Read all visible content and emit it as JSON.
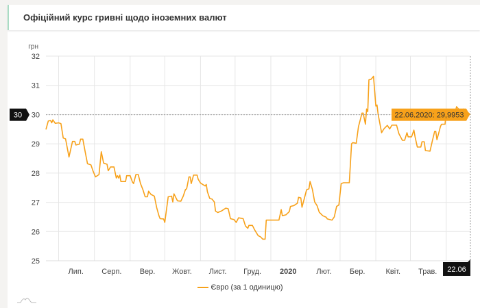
{
  "header": {
    "title": "Офіційний курс гривні щодо іноземних валют"
  },
  "colors": {
    "series": "#f7a11a",
    "tooltip_bg": "#f7a11a",
    "crosshair_label_bg": "#111111",
    "title_accent": "#a9dcc4"
  },
  "chart_data": {
    "type": "line",
    "ylabel": "грн",
    "ylim": [
      25,
      32
    ],
    "yticks": [
      "25",
      "26",
      "27",
      "28",
      "29",
      "30",
      "31",
      "32"
    ],
    "xlim": [
      "2019-06-20",
      "2020-06-22"
    ],
    "grid": true,
    "xticks": [
      {
        "date": "2019-07-01",
        "label": "Лип."
      },
      {
        "date": "2019-08-01",
        "label": "Серп."
      },
      {
        "date": "2019-09-01",
        "label": "Вер."
      },
      {
        "date": "2019-10-01",
        "label": "Жовт."
      },
      {
        "date": "2019-11-01",
        "label": "Лист."
      },
      {
        "date": "2019-12-01",
        "label": "Груд."
      },
      {
        "date": "2020-01-01",
        "label": "2020",
        "bold": true
      },
      {
        "date": "2020-02-01",
        "label": "Лют."
      },
      {
        "date": "2020-03-01",
        "label": "Бер."
      },
      {
        "date": "2020-04-01",
        "label": "Квіт."
      },
      {
        "date": "2020-05-01",
        "label": "Трав."
      },
      {
        "date": "2020-06-01",
        "label": ""
      }
    ],
    "legend_placement": "bottom-center",
    "series": [
      {
        "name": "Євро (за 1 одиницю)",
        "points": [
          [
            "2019-06-20",
            29.49
          ],
          [
            "2019-06-22",
            29.78
          ],
          [
            "2019-06-24",
            29.8
          ],
          [
            "2019-06-25",
            29.72
          ],
          [
            "2019-06-26",
            29.82
          ],
          [
            "2019-06-28",
            29.7
          ],
          [
            "2019-07-01",
            29.72
          ],
          [
            "2019-07-03",
            29.69
          ],
          [
            "2019-07-05",
            29.2
          ],
          [
            "2019-07-07",
            29.17
          ],
          [
            "2019-07-10",
            28.55
          ],
          [
            "2019-07-13",
            29.08
          ],
          [
            "2019-07-15",
            29.08
          ],
          [
            "2019-07-16",
            28.96
          ],
          [
            "2019-07-19",
            28.99
          ],
          [
            "2019-07-20",
            29.16
          ],
          [
            "2019-07-22",
            29.16
          ],
          [
            "2019-07-24",
            28.73
          ],
          [
            "2019-07-26",
            28.32
          ],
          [
            "2019-07-29",
            28.28
          ],
          [
            "2019-07-31",
            28.05
          ],
          [
            "2019-08-02",
            27.87
          ],
          [
            "2019-08-05",
            27.95
          ],
          [
            "2019-08-07",
            28.73
          ],
          [
            "2019-08-09",
            28.34
          ],
          [
            "2019-08-12",
            28.3
          ],
          [
            "2019-08-13",
            28.08
          ],
          [
            "2019-08-15",
            28.21
          ],
          [
            "2019-08-18",
            28.21
          ],
          [
            "2019-08-20",
            27.83
          ],
          [
            "2019-08-21",
            27.91
          ],
          [
            "2019-08-22",
            27.83
          ],
          [
            "2019-08-23",
            27.93
          ],
          [
            "2019-08-24",
            27.71
          ],
          [
            "2019-08-28",
            27.71
          ],
          [
            "2019-08-29",
            27.91
          ],
          [
            "2019-09-01",
            27.91
          ],
          [
            "2019-09-03",
            27.69
          ],
          [
            "2019-09-04",
            27.64
          ],
          [
            "2019-09-06",
            27.95
          ],
          [
            "2019-09-08",
            27.95
          ],
          [
            "2019-09-10",
            27.64
          ],
          [
            "2019-09-12",
            27.44
          ],
          [
            "2019-09-14",
            27.19
          ],
          [
            "2019-09-16",
            27.19
          ],
          [
            "2019-09-17",
            27.38
          ],
          [
            "2019-09-19",
            27.27
          ],
          [
            "2019-09-22",
            27.21
          ],
          [
            "2019-09-24",
            26.82
          ],
          [
            "2019-09-26",
            26.54
          ],
          [
            "2019-09-27",
            26.44
          ],
          [
            "2019-09-30",
            26.43
          ],
          [
            "2019-10-01",
            26.31
          ],
          [
            "2019-10-03",
            26.89
          ],
          [
            "2019-10-04",
            27.19
          ],
          [
            "2019-10-07",
            27.21
          ],
          [
            "2019-10-08",
            27.01
          ],
          [
            "2019-10-09",
            27.29
          ],
          [
            "2019-10-12",
            27.05
          ],
          [
            "2019-10-15",
            27.04
          ],
          [
            "2019-10-17",
            27.21
          ],
          [
            "2019-10-19",
            27.44
          ],
          [
            "2019-10-20",
            27.46
          ],
          [
            "2019-10-22",
            27.87
          ],
          [
            "2019-10-23",
            27.87
          ],
          [
            "2019-10-24",
            27.64
          ],
          [
            "2019-10-26",
            27.93
          ],
          [
            "2019-10-29",
            27.93
          ],
          [
            "2019-10-30",
            27.79
          ],
          [
            "2019-11-01",
            27.66
          ],
          [
            "2019-11-05",
            27.56
          ],
          [
            "2019-11-06",
            27.61
          ],
          [
            "2019-11-07",
            27.36
          ],
          [
            "2019-11-09",
            27.13
          ],
          [
            "2019-11-11",
            27.11
          ],
          [
            "2019-11-13",
            27.01
          ],
          [
            "2019-11-14",
            26.7
          ],
          [
            "2019-11-16",
            26.65
          ],
          [
            "2019-11-19",
            26.7
          ],
          [
            "2019-11-23",
            26.8
          ],
          [
            "2019-11-25",
            26.78
          ],
          [
            "2019-11-27",
            26.44
          ],
          [
            "2019-11-30",
            26.41
          ],
          [
            "2019-12-02",
            26.31
          ],
          [
            "2019-12-04",
            26.47
          ],
          [
            "2019-12-08",
            26.44
          ],
          [
            "2019-12-10",
            26.19
          ],
          [
            "2019-12-12",
            26.11
          ],
          [
            "2019-12-13",
            26.21
          ],
          [
            "2019-12-16",
            26.21
          ],
          [
            "2019-12-18",
            26.05
          ],
          [
            "2019-12-21",
            25.86
          ],
          [
            "2019-12-23",
            25.82
          ],
          [
            "2019-12-25",
            25.74
          ],
          [
            "2019-12-27",
            25.74
          ],
          [
            "2019-12-28",
            26.39
          ],
          [
            "2020-01-08",
            26.39
          ],
          [
            "2020-01-10",
            26.75
          ],
          [
            "2020-01-11",
            26.54
          ],
          [
            "2020-01-14",
            26.57
          ],
          [
            "2020-01-17",
            26.68
          ],
          [
            "2020-01-18",
            26.86
          ],
          [
            "2020-01-21",
            26.89
          ],
          [
            "2020-01-24",
            26.97
          ],
          [
            "2020-01-25",
            27.17
          ],
          [
            "2020-01-27",
            27.15
          ],
          [
            "2020-01-28",
            26.83
          ],
          [
            "2020-01-30",
            27.13
          ],
          [
            "2020-02-01",
            27.43
          ],
          [
            "2020-02-03",
            27.46
          ],
          [
            "2020-02-04",
            27.71
          ],
          [
            "2020-02-06",
            27.44
          ],
          [
            "2020-02-08",
            27.01
          ],
          [
            "2020-02-10",
            26.89
          ],
          [
            "2020-02-12",
            26.66
          ],
          [
            "2020-02-15",
            26.54
          ],
          [
            "2020-02-18",
            26.49
          ],
          [
            "2020-02-19",
            26.43
          ],
          [
            "2020-02-23",
            26.39
          ],
          [
            "2020-02-25",
            26.5
          ],
          [
            "2020-02-27",
            26.86
          ],
          [
            "2020-02-29",
            26.91
          ],
          [
            "2020-03-02",
            27.64
          ],
          [
            "2020-03-04",
            27.67
          ],
          [
            "2020-03-09",
            27.67
          ],
          [
            "2020-03-11",
            29.0
          ],
          [
            "2020-03-12",
            29.04
          ],
          [
            "2020-03-15",
            29.02
          ],
          [
            "2020-03-17",
            29.59
          ],
          [
            "2020-03-18",
            29.74
          ],
          [
            "2020-03-20",
            30.05
          ],
          [
            "2020-03-21",
            30.05
          ],
          [
            "2020-03-23",
            29.67
          ],
          [
            "2020-03-24",
            30.19
          ],
          [
            "2020-03-25",
            30.1
          ],
          [
            "2020-03-26",
            31.19
          ],
          [
            "2020-03-28",
            31.21
          ],
          [
            "2020-03-30",
            31.31
          ],
          [
            "2020-04-01",
            30.29
          ],
          [
            "2020-04-02",
            30.33
          ],
          [
            "2020-04-03",
            30.02
          ],
          [
            "2020-04-06",
            29.38
          ],
          [
            "2020-04-08",
            29.51
          ],
          [
            "2020-04-09",
            29.55
          ],
          [
            "2020-04-11",
            29.63
          ],
          [
            "2020-04-13",
            29.51
          ],
          [
            "2020-04-15",
            29.64
          ],
          [
            "2020-04-19",
            29.64
          ],
          [
            "2020-04-21",
            29.35
          ],
          [
            "2020-04-24",
            29.12
          ],
          [
            "2020-04-26",
            29.12
          ],
          [
            "2020-04-28",
            29.38
          ],
          [
            "2020-04-29",
            29.24
          ],
          [
            "2020-05-02",
            29.24
          ],
          [
            "2020-05-04",
            29.47
          ],
          [
            "2020-05-05",
            29.24
          ],
          [
            "2020-05-07",
            28.89
          ],
          [
            "2020-05-10",
            28.89
          ],
          [
            "2020-05-11",
            29.07
          ],
          [
            "2020-05-13",
            29.07
          ],
          [
            "2020-05-14",
            28.77
          ],
          [
            "2020-05-18",
            28.75
          ],
          [
            "2020-05-20",
            29.1
          ],
          [
            "2020-05-22",
            29.43
          ],
          [
            "2020-05-23",
            29.43
          ],
          [
            "2020-05-24",
            29.14
          ],
          [
            "2020-05-27",
            29.59
          ],
          [
            "2020-05-28",
            29.67
          ],
          [
            "2020-05-31",
            29.67
          ],
          [
            "2020-06-01",
            30.06
          ],
          [
            "2020-06-04",
            30.06
          ],
          [
            "2020-06-06",
            30.13
          ],
          [
            "2020-06-09",
            30.1
          ],
          [
            "2020-06-10",
            30.27
          ],
          [
            "2020-06-13",
            30.13
          ],
          [
            "2020-06-16",
            30.19
          ],
          [
            "2020-06-19",
            30.1
          ],
          [
            "2020-06-22",
            29.9953
          ]
        ]
      }
    ],
    "crosshair": {
      "y_label": "30",
      "x_label": "22.06",
      "value": 29.9953,
      "date": "2020-06-22"
    },
    "tooltip": "22.06.2020: 29,9953"
  }
}
